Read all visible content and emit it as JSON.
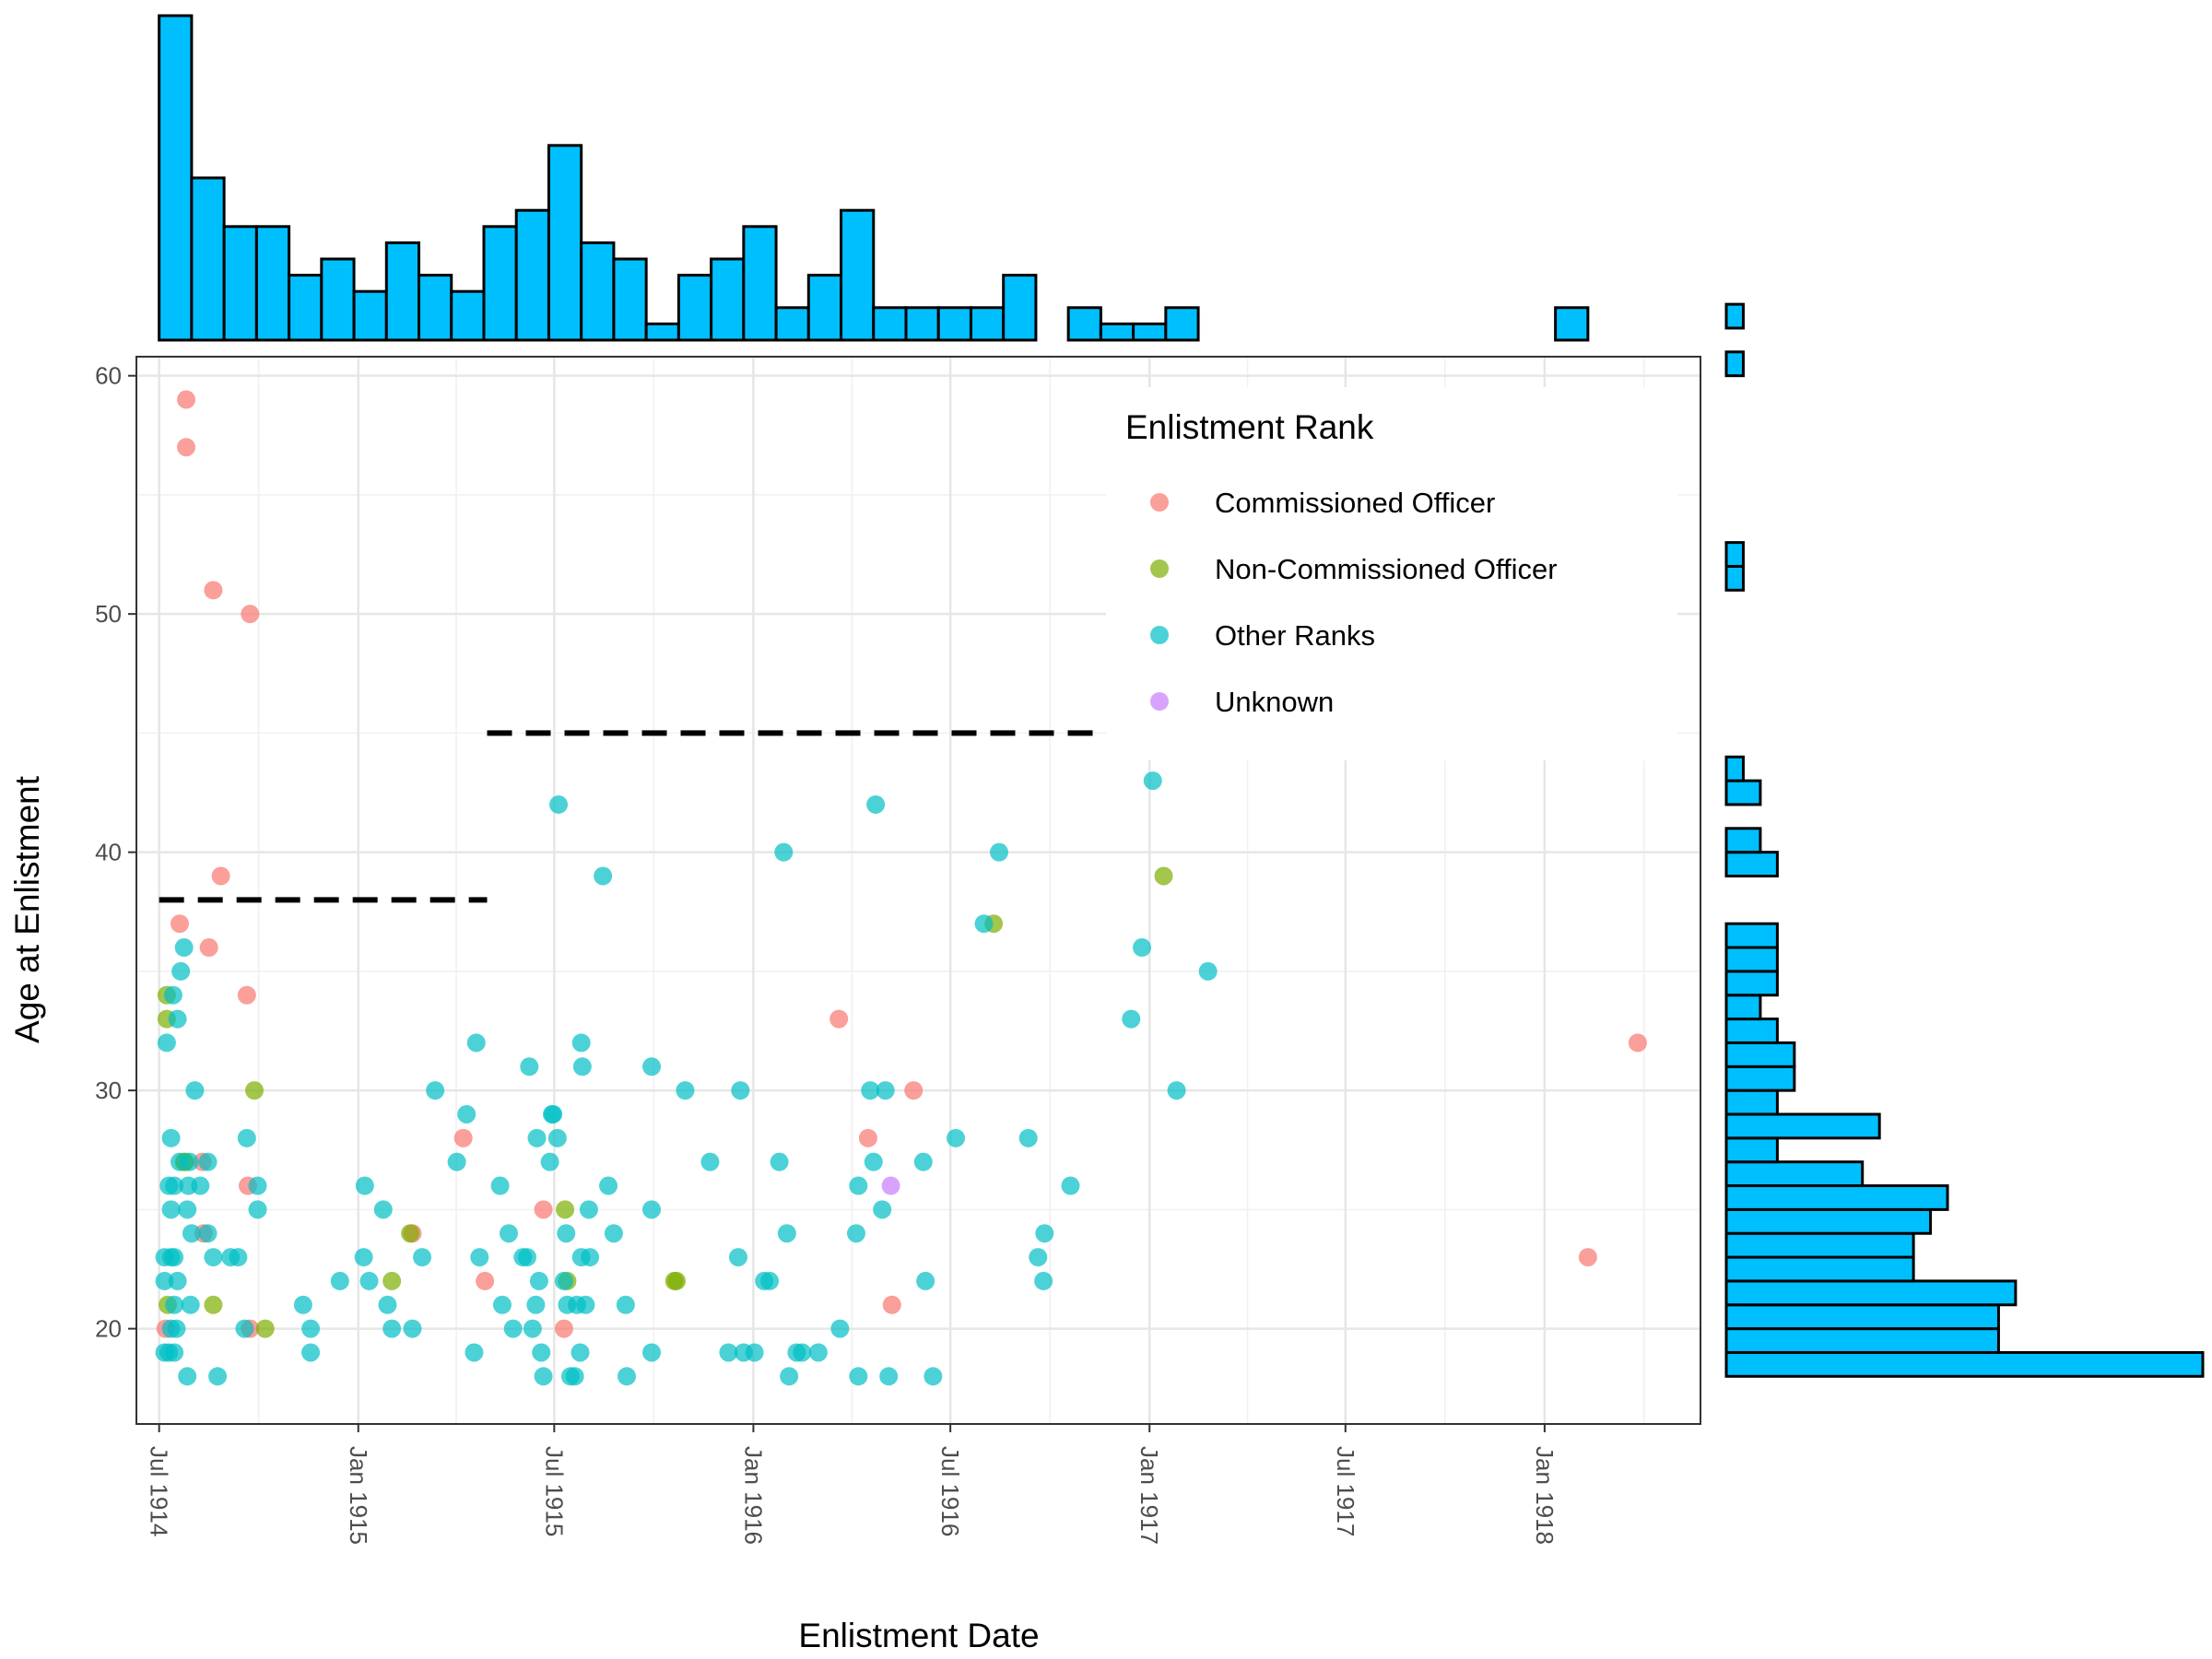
{
  "chart_data": {
    "type": "scatter",
    "xlabel": "Enlistment Date",
    "ylabel": "Age at Enlistment",
    "xlim": [
      "1914-06-10",
      "1918-05-25"
    ],
    "ylim": [
      16,
      60.8
    ],
    "x_ticks": [
      "1914-07-01",
      "1915-01-01",
      "1915-07-01",
      "1916-01-01",
      "1916-07-01",
      "1917-01-01",
      "1917-07-01",
      "1918-01-01"
    ],
    "x_tick_labels": [
      "Jul 1914",
      "Jan 1915",
      "Jul 1915",
      "Jan 1916",
      "Jul 1916",
      "Jan 1917",
      "Jul 1917",
      "Jan 1918"
    ],
    "y_ticks": [
      20,
      30,
      40,
      50,
      60
    ],
    "y_tick_labels": [
      "20",
      "30",
      "40",
      "50",
      "60"
    ],
    "grid": true,
    "legend": {
      "title": "Enlistment Rank",
      "placement": "top-right inside",
      "items": [
        "Commissioned Officer",
        "Non-Commissioned Officer",
        "Other Ranks",
        "Unknown"
      ]
    },
    "colors": {
      "Commissioned Officer": "#F8766D",
      "Non-Commissioned Officer": "#7CAE00",
      "Other Ranks": "#00BFC4",
      "Unknown": "#C77CFF",
      "histogram_fill": "#00BFFF",
      "histogram_stroke": "#000000",
      "reference_line": "#000000"
    },
    "reference_lines": [
      {
        "x_start": "1914-07-01",
        "x_end": "1915-04-30",
        "y": 38
      },
      {
        "x_start": "1915-04-30",
        "x_end": "1916-11-20",
        "y": 45
      }
    ],
    "series": [
      {
        "name": "Commissioned Officer",
        "points": [
          [
            "1914-07-26",
            59
          ],
          [
            "1914-07-26",
            57
          ],
          [
            "1914-08-20",
            51
          ],
          [
            "1914-09-23",
            50
          ],
          [
            "1914-08-27",
            39
          ],
          [
            "1914-07-20",
            37
          ],
          [
            "1914-08-16",
            36
          ],
          [
            "1914-09-20",
            34
          ],
          [
            "1914-08-10",
            27
          ],
          [
            "1914-09-21",
            26
          ],
          [
            "1914-08-11",
            24
          ],
          [
            "1915-02-20",
            24
          ],
          [
            "1914-09-23",
            20
          ],
          [
            "1914-07-07",
            20
          ],
          [
            "1915-04-08",
            28
          ],
          [
            "1915-04-28",
            22
          ],
          [
            "1915-06-21",
            25
          ],
          [
            "1915-07-10",
            20
          ],
          [
            "1916-03-20",
            33
          ],
          [
            "1916-04-16",
            28
          ],
          [
            "1916-05-28",
            30
          ],
          [
            "1916-05-08",
            21
          ],
          [
            "1918-02-10",
            23
          ],
          [
            "1918-03-28",
            32
          ]
        ]
      },
      {
        "name": "Non-Commissioned Officer",
        "points": [
          [
            "1914-07-08",
            34
          ],
          [
            "1914-07-08",
            33
          ],
          [
            "1914-07-24",
            27
          ],
          [
            "1914-07-25",
            27
          ],
          [
            "1914-09-27",
            30
          ],
          [
            "1914-08-20",
            21
          ],
          [
            "1914-10-07",
            20
          ],
          [
            "1914-07-09",
            21
          ],
          [
            "1915-02-01",
            22
          ],
          [
            "1915-02-18",
            24
          ],
          [
            "1915-07-11",
            25
          ],
          [
            "1915-07-13",
            22
          ],
          [
            "1915-10-20",
            22
          ],
          [
            "1915-10-22",
            22
          ],
          [
            "1916-08-10",
            37
          ],
          [
            "1917-01-14",
            39
          ]
        ]
      },
      {
        "name": "Other Ranks",
        "points": [
          [
            "1914-07-24",
            36
          ],
          [
            "1914-07-21",
            35
          ],
          [
            "1914-07-18",
            33
          ],
          [
            "1914-07-14",
            34
          ],
          [
            "1914-07-08",
            32
          ],
          [
            "1914-08-03",
            30
          ],
          [
            "1914-07-12",
            28
          ],
          [
            "1914-09-20",
            28
          ],
          [
            "1914-08-15",
            27
          ],
          [
            "1914-07-29",
            27
          ],
          [
            "1914-07-20",
            27
          ],
          [
            "1914-07-10",
            26
          ],
          [
            "1914-07-15",
            26
          ],
          [
            "1914-07-28",
            26
          ],
          [
            "1914-08-08",
            26
          ],
          [
            "1914-09-30",
            26
          ],
          [
            "1914-07-27",
            25
          ],
          [
            "1914-07-12",
            25
          ],
          [
            "1914-09-30",
            25
          ],
          [
            "1914-07-31",
            24
          ],
          [
            "1914-08-15",
            24
          ],
          [
            "1914-07-06",
            23
          ],
          [
            "1914-07-12",
            23
          ],
          [
            "1914-07-15",
            23
          ],
          [
            "1914-08-20",
            23
          ],
          [
            "1914-09-05",
            23
          ],
          [
            "1914-09-12",
            23
          ],
          [
            "1914-07-06",
            22
          ],
          [
            "1914-07-18",
            22
          ],
          [
            "1914-07-30",
            21
          ],
          [
            "1914-07-15",
            21
          ],
          [
            "1914-07-12",
            20
          ],
          [
            "1914-07-17",
            20
          ],
          [
            "1914-09-18",
            20
          ],
          [
            "1914-07-06",
            19
          ],
          [
            "1914-07-10",
            19
          ],
          [
            "1914-07-15",
            19
          ],
          [
            "1914-07-27",
            18
          ],
          [
            "1914-08-24",
            18
          ],
          [
            "1914-11-11",
            21
          ],
          [
            "1914-11-18",
            20
          ],
          [
            "1914-11-18",
            19
          ],
          [
            "1914-12-15",
            22
          ],
          [
            "1915-01-07",
            26
          ],
          [
            "1915-01-06",
            23
          ],
          [
            "1915-01-11",
            22
          ],
          [
            "1915-01-28",
            21
          ],
          [
            "1915-02-01",
            20
          ],
          [
            "1915-02-20",
            20
          ],
          [
            "1915-01-24",
            25
          ],
          [
            "1915-03-01",
            23
          ],
          [
            "1915-03-13",
            30
          ],
          [
            "1915-04-02",
            27
          ],
          [
            "1915-04-11",
            29
          ],
          [
            "1915-04-20",
            32
          ],
          [
            "1915-04-23",
            23
          ],
          [
            "1915-04-18",
            19
          ],
          [
            "1915-05-12",
            26
          ],
          [
            "1915-05-14",
            21
          ],
          [
            "1915-05-20",
            24
          ],
          [
            "1915-05-24",
            20
          ],
          [
            "1915-06-11",
            20
          ],
          [
            "1915-06-02",
            23
          ],
          [
            "1915-06-06",
            23
          ],
          [
            "1915-06-14",
            21
          ],
          [
            "1915-06-27",
            27
          ],
          [
            "1915-06-21",
            18
          ],
          [
            "1915-06-17",
            22
          ],
          [
            "1915-06-19",
            19
          ],
          [
            "1915-07-10",
            22
          ],
          [
            "1915-06-08",
            31
          ],
          [
            "1915-06-15",
            28
          ],
          [
            "1915-06-30",
            29
          ],
          [
            "1915-07-04",
            28
          ],
          [
            "1915-06-29",
            29
          ],
          [
            "1915-07-05",
            42
          ],
          [
            "1915-07-16",
            18
          ],
          [
            "1915-07-12",
            24
          ],
          [
            "1915-07-13",
            21
          ],
          [
            "1915-07-20",
            18
          ],
          [
            "1915-07-26",
            32
          ],
          [
            "1915-07-26",
            23
          ],
          [
            "1915-07-22",
            21
          ],
          [
            "1915-07-30",
            21
          ],
          [
            "1915-08-02",
            25
          ],
          [
            "1915-07-25",
            19
          ],
          [
            "1915-07-27",
            31
          ],
          [
            "1915-08-03",
            23
          ],
          [
            "1915-08-15",
            39
          ],
          [
            "1915-08-20",
            26
          ],
          [
            "1915-08-25",
            24
          ],
          [
            "1915-09-05",
            21
          ],
          [
            "1915-09-06",
            18
          ],
          [
            "1915-09-29",
            31
          ],
          [
            "1915-09-29",
            25
          ],
          [
            "1915-09-29",
            19
          ],
          [
            "1915-10-30",
            30
          ],
          [
            "1915-11-22",
            27
          ],
          [
            "1915-12-09",
            19
          ],
          [
            "1915-12-20",
            30
          ],
          [
            "1915-12-18",
            23
          ],
          [
            "1915-12-23",
            19
          ],
          [
            "1916-01-02",
            19
          ],
          [
            "1916-01-11",
            22
          ],
          [
            "1916-01-16",
            22
          ],
          [
            "1916-01-25",
            27
          ],
          [
            "1916-01-29",
            40
          ],
          [
            "1916-02-01",
            24
          ],
          [
            "1916-02-03",
            18
          ],
          [
            "1916-02-10",
            19
          ],
          [
            "1916-02-15",
            19
          ],
          [
            "1916-03-01",
            19
          ],
          [
            "1916-03-21",
            20
          ],
          [
            "1916-04-05",
            24
          ],
          [
            "1916-04-07",
            26
          ],
          [
            "1916-04-07",
            18
          ],
          [
            "1916-04-18",
            30
          ],
          [
            "1916-04-21",
            27
          ],
          [
            "1916-04-23",
            42
          ],
          [
            "1916-04-29",
            25
          ],
          [
            "1916-05-02",
            30
          ],
          [
            "1916-05-05",
            18
          ],
          [
            "1916-06-06",
            27
          ],
          [
            "1916-06-08",
            22
          ],
          [
            "1916-06-15",
            18
          ],
          [
            "1916-07-06",
            28
          ],
          [
            "1916-08-01",
            37
          ],
          [
            "1916-08-15",
            40
          ],
          [
            "1916-09-11",
            28
          ],
          [
            "1916-09-20",
            23
          ],
          [
            "1916-09-25",
            22
          ],
          [
            "1916-09-26",
            24
          ],
          [
            "1916-10-20",
            26
          ],
          [
            "1916-12-15",
            33
          ],
          [
            "1916-12-25",
            36
          ],
          [
            "1917-01-04",
            43
          ],
          [
            "1917-01-26",
            30
          ],
          [
            "1917-02-24",
            35
          ]
        ]
      },
      {
        "name": "Unknown",
        "points": [
          [
            "1916-05-07",
            26
          ]
        ]
      }
    ],
    "top_histogram": {
      "bin_width_days": 30,
      "counts": [
        20,
        10,
        7,
        7,
        4,
        5,
        3,
        6,
        4,
        3,
        7,
        8,
        12,
        6,
        5,
        1,
        4,
        5,
        7,
        2,
        4,
        8,
        2,
        2,
        2,
        2,
        4,
        0,
        2,
        1,
        1,
        2,
        0,
        0,
        0,
        0,
        0,
        0,
        0,
        0,
        0,
        0,
        0,
        2
      ]
    },
    "right_histogram": {
      "bin_height_years": 1,
      "bins_from_age": 18,
      "counts": [
        28,
        16,
        16,
        17,
        11,
        11,
        12,
        13,
        8,
        3,
        9,
        3,
        4,
        4,
        3,
        2,
        3,
        3,
        3,
        0,
        0,
        3,
        2,
        0,
        2,
        1,
        0,
        0,
        0,
        0,
        0,
        0,
        0,
        1,
        1,
        0,
        0,
        0,
        0,
        0,
        0,
        0,
        1,
        0,
        1
      ]
    }
  }
}
